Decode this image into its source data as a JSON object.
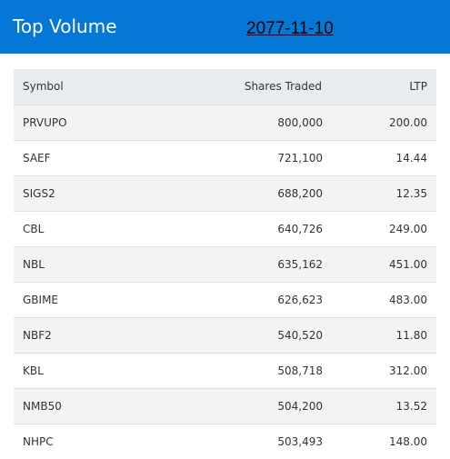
{
  "header": {
    "title": "Top Volume",
    "date": "2077-11-10"
  },
  "table": {
    "columns": [
      "Symbol",
      "Shares Traded",
      "LTP"
    ],
    "rows": [
      {
        "symbol": "PRVUPO",
        "shares": "800,000",
        "ltp": "200.00"
      },
      {
        "symbol": "SAEF",
        "shares": "721,100",
        "ltp": "14.44"
      },
      {
        "symbol": "SIGS2",
        "shares": "688,200",
        "ltp": "12.35"
      },
      {
        "symbol": "CBL",
        "shares": "640,726",
        "ltp": "249.00"
      },
      {
        "symbol": "NBL",
        "shares": "635,162",
        "ltp": "451.00"
      },
      {
        "symbol": "GBIME",
        "shares": "626,623",
        "ltp": "483.00"
      },
      {
        "symbol": "NBF2",
        "shares": "540,520",
        "ltp": "11.80"
      },
      {
        "symbol": "KBL",
        "shares": "508,718",
        "ltp": "312.00"
      },
      {
        "symbol": "NMB50",
        "shares": "504,200",
        "ltp": "13.52"
      },
      {
        "symbol": "NHPC",
        "shares": "503,493",
        "ltp": "148.00"
      }
    ]
  },
  "colors": {
    "header_bg": "#0577d6",
    "header_text": "#ffffff",
    "table_head_bg": "#e9ecef",
    "row_stripe": "#f3f3f3"
  }
}
